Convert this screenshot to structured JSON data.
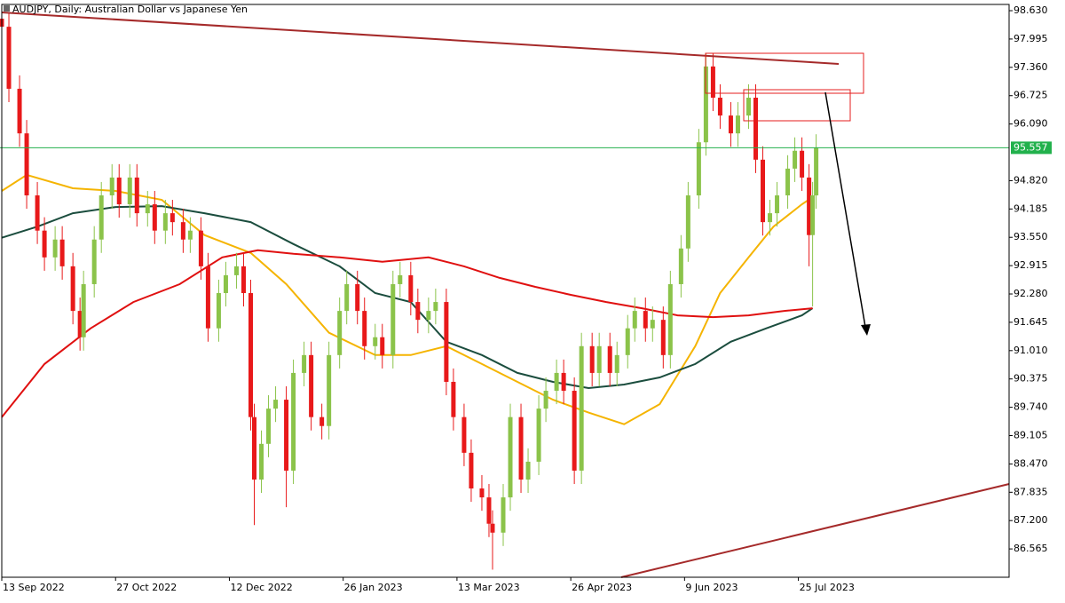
{
  "chart_data": {
    "type": "candlestick",
    "title": "AUDJPY, Daily:  Australian Dollar vs Japanese Yen",
    "xlim": [
      -0.5,
      283.25
    ],
    "ylim": [
      85.93,
      98.77
    ],
    "xticks": [
      {
        "value": 0,
        "label": "13 Sep 2022"
      },
      {
        "value": 32,
        "label": "27 Oct 2022"
      },
      {
        "value": 64,
        "label": "12 Dec 2022"
      },
      {
        "value": 96,
        "label": "26 Jan 2023"
      },
      {
        "value": 128,
        "label": "13 Mar 2023"
      },
      {
        "value": 160,
        "label": "26 Apr 2023"
      },
      {
        "value": 192,
        "label": "9 Jun 2023"
      },
      {
        "value": 224,
        "label": "25 Jul 2023"
      }
    ],
    "yticks": [
      {
        "value": 98.63,
        "label": "98.630"
      },
      97.995,
      {
        "value": 97.36,
        "label": "97.360"
      },
      96.725,
      {
        "value": 96.09,
        "label": "96.090"
      },
      {
        "value": 94.82,
        "label": "94.820"
      },
      94.185,
      {
        "value": 93.55,
        "label": "93.550"
      },
      92.915,
      {
        "value": 92.28,
        "label": "92.280"
      },
      91.645,
      {
        "value": 91.01,
        "label": "91.010"
      },
      90.375,
      {
        "value": 89.74,
        "label": "89.740"
      },
      89.105,
      {
        "value": 88.47,
        "label": "88.470"
      },
      87.835,
      {
        "value": 87.2,
        "label": "87.200"
      },
      86.565
    ],
    "current_price": 95.557,
    "current_price_color": "#22b14c",
    "up_color": "#8bc34a",
    "down_color": "#e8191a",
    "candles": {
      "x": [
        0,
        2,
        5,
        7,
        10,
        12,
        15,
        17,
        20,
        22,
        23,
        26,
        28,
        31,
        33,
        36,
        38,
        41,
        43,
        46,
        48,
        51,
        53,
        56,
        58,
        61,
        63,
        66,
        68,
        70,
        71,
        73,
        75,
        77,
        80,
        82,
        85,
        87,
        90,
        92,
        95,
        97,
        100,
        102,
        105,
        107,
        110,
        112,
        115,
        117,
        120,
        122,
        125,
        127,
        130,
        132,
        135,
        137,
        138,
        141,
        143,
        146,
        148,
        151,
        153,
        156,
        158,
        161,
        163,
        166,
        168,
        171,
        173,
        176,
        178,
        181,
        183,
        186,
        188,
        191,
        193,
        196,
        198,
        200,
        202,
        205,
        207,
        210,
        212,
        214,
        216,
        218,
        221,
        223,
        225,
        227,
        228,
        229
      ],
      "open": [
        98.45,
        98.27,
        96.88,
        95.88,
        94.49,
        93.7,
        93.1,
        93.5,
        92.9,
        91.9,
        91.31,
        92.5,
        93.5,
        94.49,
        94.89,
        94.29,
        94.89,
        94.09,
        94.29,
        93.7,
        94.09,
        93.89,
        93.5,
        93.7,
        92.9,
        91.51,
        92.3,
        92.7,
        92.9,
        92.3,
        89.52,
        88.12,
        88.92,
        89.71,
        89.91,
        88.32,
        90.51,
        90.91,
        89.52,
        89.32,
        90.91,
        91.9,
        92.5,
        91.9,
        91.11,
        91.31,
        90.91,
        92.5,
        92.7,
        92.1,
        91.7,
        91.9,
        92.1,
        90.31,
        89.52,
        88.72,
        87.92,
        87.72,
        87.13,
        86.93,
        87.72,
        89.52,
        88.12,
        88.52,
        89.71,
        90.11,
        90.51,
        90.11,
        88.32,
        91.11,
        90.51,
        91.11,
        90.51,
        90.91,
        91.51,
        91.9,
        91.51,
        91.7,
        90.91,
        92.5,
        93.3,
        94.49,
        95.68,
        97.38,
        96.68,
        96.28,
        95.88,
        96.28,
        96.68,
        95.29,
        93.89,
        94.09,
        94.49,
        95.09,
        95.49,
        94.89,
        93.6,
        94.49
      ],
      "high": [
        98.75,
        98.57,
        97.18,
        96.18,
        94.79,
        94.0,
        93.8,
        93.8,
        93.2,
        92.2,
        92.8,
        93.8,
        94.79,
        95.19,
        95.19,
        95.19,
        95.19,
        94.59,
        94.59,
        94.39,
        94.39,
        94.19,
        94.0,
        94.0,
        93.2,
        92.6,
        93.0,
        93.2,
        93.2,
        92.6,
        89.82,
        89.22,
        90.01,
        90.21,
        90.21,
        90.81,
        91.21,
        91.21,
        89.82,
        91.21,
        92.2,
        92.8,
        92.8,
        92.2,
        91.61,
        91.61,
        92.8,
        93.0,
        93.0,
        92.4,
        92.2,
        92.4,
        92.4,
        90.61,
        89.82,
        89.02,
        88.22,
        88.02,
        87.43,
        88.02,
        89.82,
        89.82,
        88.82,
        90.01,
        90.41,
        90.81,
        90.81,
        90.41,
        91.41,
        91.41,
        91.41,
        91.41,
        91.21,
        91.81,
        92.2,
        92.2,
        92.0,
        92.0,
        92.8,
        93.6,
        94.79,
        95.98,
        97.68,
        97.68,
        96.98,
        96.58,
        96.58,
        96.98,
        96.98,
        95.59,
        94.39,
        94.79,
        95.39,
        95.79,
        95.79,
        95.19,
        94.79,
        95.86
      ],
      "low": [
        97.97,
        96.58,
        95.58,
        94.19,
        93.4,
        92.8,
        92.8,
        92.6,
        91.6,
        91.01,
        91.01,
        92.2,
        93.2,
        94.19,
        93.99,
        93.99,
        93.79,
        93.79,
        93.4,
        93.4,
        93.59,
        93.2,
        93.2,
        92.6,
        91.21,
        91.21,
        92.0,
        92.4,
        92.0,
        89.22,
        87.1,
        87.82,
        88.62,
        89.41,
        87.5,
        88.02,
        90.21,
        89.22,
        89.02,
        89.02,
        90.61,
        91.6,
        91.6,
        90.81,
        90.81,
        90.61,
        90.61,
        92.2,
        91.8,
        91.4,
        91.4,
        91.6,
        90.01,
        89.22,
        88.42,
        87.62,
        87.42,
        86.83,
        86.1,
        86.63,
        87.42,
        87.82,
        87.82,
        88.22,
        89.41,
        89.81,
        89.81,
        88.02,
        88.02,
        90.21,
        90.21,
        90.21,
        90.21,
        90.61,
        91.21,
        91.21,
        91.21,
        90.61,
        90.61,
        92.2,
        93.0,
        94.19,
        95.38,
        96.38,
        95.98,
        95.58,
        95.58,
        95.98,
        94.99,
        93.59,
        93.59,
        93.79,
        94.19,
        94.79,
        94.59,
        92.9,
        92.0,
        94.19
      ],
      "close": [
        98.27,
        96.88,
        95.88,
        94.49,
        93.7,
        93.1,
        93.5,
        92.9,
        91.9,
        91.31,
        92.5,
        93.5,
        94.49,
        94.89,
        94.29,
        94.89,
        94.09,
        94.29,
        93.7,
        94.09,
        93.89,
        93.5,
        93.7,
        92.9,
        91.51,
        92.3,
        92.7,
        92.9,
        92.3,
        89.52,
        88.12,
        88.92,
        89.71,
        89.91,
        88.32,
        90.51,
        90.91,
        89.52,
        89.32,
        90.91,
        91.9,
        92.5,
        91.9,
        91.11,
        91.31,
        90.91,
        92.5,
        92.7,
        92.1,
        91.7,
        91.9,
        92.1,
        90.31,
        89.52,
        88.72,
        87.92,
        87.72,
        87.13,
        86.93,
        87.72,
        89.52,
        88.12,
        88.52,
        89.71,
        90.11,
        90.51,
        90.11,
        88.32,
        91.11,
        90.51,
        91.11,
        90.51,
        90.91,
        91.51,
        91.9,
        91.51,
        91.7,
        90.91,
        92.5,
        93.3,
        94.49,
        95.68,
        97.38,
        96.68,
        96.28,
        95.88,
        96.28,
        96.68,
        95.29,
        93.89,
        94.09,
        94.49,
        95.09,
        95.49,
        94.89,
        93.6,
        94.49,
        95.56
      ]
    },
    "lines": [
      {
        "color": "#f5b400",
        "x": [
          0,
          7,
          20,
          32,
          45,
          57,
          70,
          80,
          92,
          105,
          115,
          125,
          135,
          145,
          155,
          165,
          175,
          185,
          195,
          202,
          210,
          217,
          225,
          228
        ],
        "values": [
          94.59,
          94.95,
          94.65,
          94.59,
          94.39,
          93.6,
          93.2,
          92.5,
          91.41,
          90.91,
          90.91,
          91.11,
          90.71,
          90.31,
          89.91,
          89.62,
          89.36,
          89.81,
          91.11,
          92.3,
          93.1,
          93.79,
          94.29,
          94.45
        ]
      },
      {
        "color": "#1b4d3e",
        "x": [
          0,
          10,
          20,
          32,
          45,
          57,
          70,
          82,
          95,
          105,
          115,
          125,
          135,
          145,
          155,
          165,
          175,
          185,
          195,
          205,
          215,
          225,
          228
        ],
        "values": [
          93.54,
          93.79,
          94.09,
          94.23,
          94.25,
          94.09,
          93.89,
          93.4,
          92.9,
          92.3,
          92.1,
          91.21,
          90.91,
          90.51,
          90.31,
          90.17,
          90.25,
          90.41,
          90.71,
          91.21,
          91.51,
          91.8,
          91.96
        ]
      },
      {
        "color": "#e01010",
        "x": [
          0,
          12,
          25,
          37,
          50,
          62,
          72,
          82,
          95,
          107,
          120,
          130,
          140,
          150,
          160,
          170,
          180,
          190,
          200,
          210,
          220,
          228
        ],
        "values": [
          89.52,
          90.71,
          91.51,
          92.1,
          92.5,
          93.1,
          93.26,
          93.18,
          93.1,
          93.0,
          93.1,
          92.9,
          92.64,
          92.44,
          92.26,
          92.1,
          91.96,
          91.8,
          91.76,
          91.8,
          91.9,
          91.96
        ]
      }
    ]
  }
}
